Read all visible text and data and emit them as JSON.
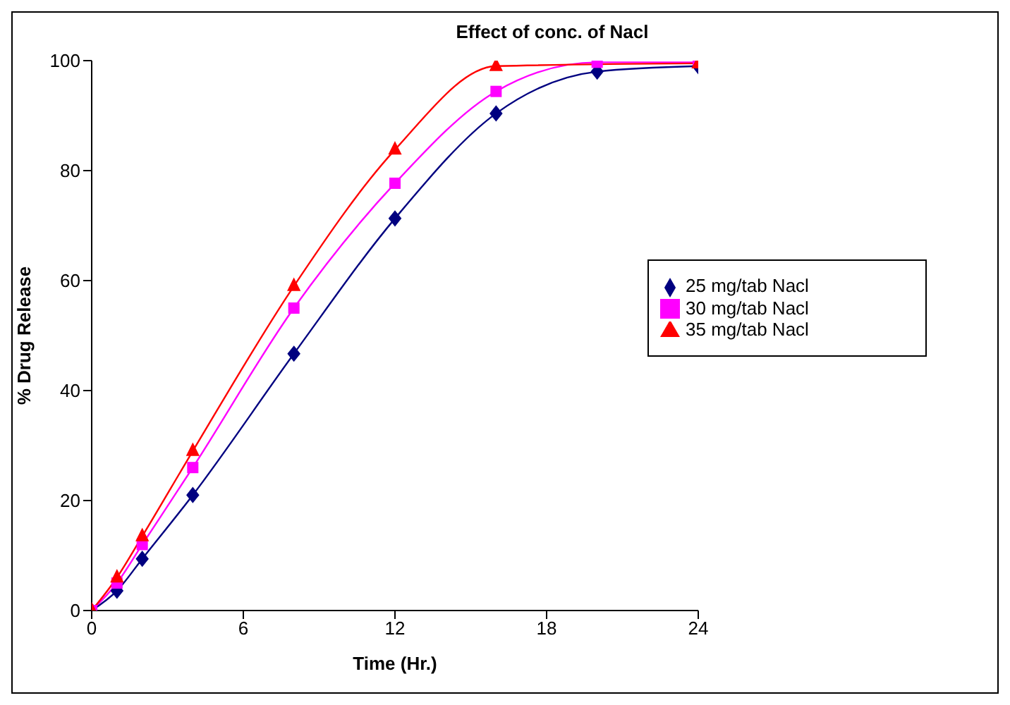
{
  "chart_data": {
    "type": "line",
    "title": "Effect of conc. of Nacl",
    "xlabel": "Time (Hr.)",
    "ylabel": "% Drug Release",
    "x": [
      0,
      1,
      2,
      4,
      8,
      12,
      16,
      20,
      24
    ],
    "series": [
      {
        "name": "25 mg/tab Nacl",
        "color": "#000080",
        "marker": "diamond",
        "values": [
          0,
          3.6,
          9.4,
          21,
          46.7,
          71.3,
          90.4,
          98,
          99
        ]
      },
      {
        "name": "30 mg/tab Nacl",
        "color": "#ff00ff",
        "marker": "square",
        "values": [
          0,
          5,
          12,
          26,
          55,
          77.7,
          94.4,
          99.7,
          99.7
        ]
      },
      {
        "name": "35 mg/tab Nacl",
        "color": "#ff0000",
        "marker": "triangle",
        "values": [
          0,
          6,
          13.5,
          29,
          59,
          83.8,
          99,
          null,
          99.5
        ]
      }
    ],
    "xlim": [
      0,
      24
    ],
    "xticks": [
      0,
      6,
      12,
      18,
      24
    ],
    "ylim": [
      0,
      100
    ],
    "yticks": [
      0,
      20,
      40,
      60,
      80,
      100
    ],
    "grid": false,
    "legend": "right",
    "line_style": "solid"
  }
}
